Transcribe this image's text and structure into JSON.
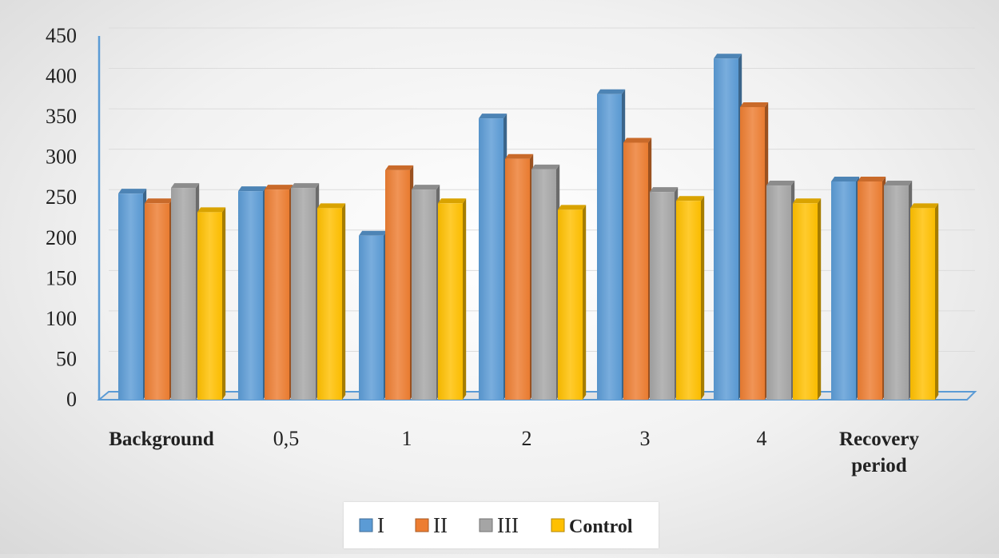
{
  "chart_data": {
    "type": "bar",
    "title": "",
    "xlabel": "",
    "ylabel": "",
    "categories": [
      "Background",
      "0,5",
      "1",
      "2",
      "3",
      "4",
      "Recovery period"
    ],
    "category_lines": [
      [
        "Background"
      ],
      [
        "0,5"
      ],
      [
        "1"
      ],
      [
        "2"
      ],
      [
        "3"
      ],
      [
        "4"
      ],
      [
        "Recovery",
        "period"
      ]
    ],
    "series": [
      {
        "name": "I",
        "values": [
          255,
          258,
          203,
          348,
          378,
          422,
          270
        ],
        "color": "#5b9bd5"
      },
      {
        "name": "II",
        "values": [
          243,
          260,
          284,
          298,
          318,
          362,
          270
        ],
        "color": "#ed7d31"
      },
      {
        "name": "III",
        "values": [
          262,
          262,
          260,
          285,
          257,
          265,
          265
        ],
        "color": "#a5a5a5"
      },
      {
        "name": "Control",
        "values": [
          232,
          237,
          243,
          235,
          246,
          243,
          237
        ],
        "color": "#ffc000"
      }
    ],
    "ylim": [
      0,
      450
    ],
    "yticks": [
      "0",
      "50",
      "100",
      "150",
      "200",
      "250",
      "300",
      "350",
      "400",
      "450"
    ],
    "grid": true,
    "legend_position": "bottom"
  }
}
